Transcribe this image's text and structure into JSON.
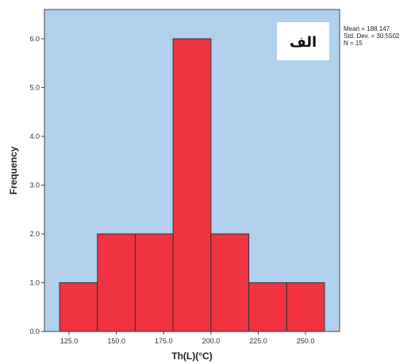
{
  "chart_data": {
    "type": "bar",
    "subtype": "histogram",
    "xlabel": "Th(L)(°C)",
    "ylabel": "Frequency",
    "bins": [
      {
        "from": 120,
        "to": 140,
        "count": 1
      },
      {
        "from": 140,
        "to": 160,
        "count": 2
      },
      {
        "from": 160,
        "to": 180,
        "count": 2
      },
      {
        "from": 180,
        "to": 200,
        "count": 6
      },
      {
        "from": 200,
        "to": 220,
        "count": 2
      },
      {
        "from": 220,
        "to": 240,
        "count": 1
      },
      {
        "from": 240,
        "to": 260,
        "count": 1
      }
    ],
    "xlim": [
      112,
      268
    ],
    "ylim": [
      0,
      6.6
    ],
    "x_ticks": [
      "125.0",
      "150.0",
      "175.0",
      "200.0",
      "225.0",
      "250.0"
    ],
    "x_tick_values": [
      125,
      150,
      175,
      200,
      225,
      250
    ],
    "y_ticks": [
      "0.0",
      "1.0",
      "2.0",
      "3.0",
      "4.0",
      "5.0",
      "6.0"
    ],
    "y_tick_values": [
      0,
      1,
      2,
      3,
      4,
      5,
      6
    ],
    "statistics": [
      "Mean = 188.147",
      "Std. Dev. = 30.5502",
      "N = 15"
    ],
    "annotation": "الف",
    "grid": false,
    "colors": {
      "plot_background": "#b0d0ec",
      "bar_fill": "#ef3340",
      "bar_stroke": "#333333"
    }
  }
}
